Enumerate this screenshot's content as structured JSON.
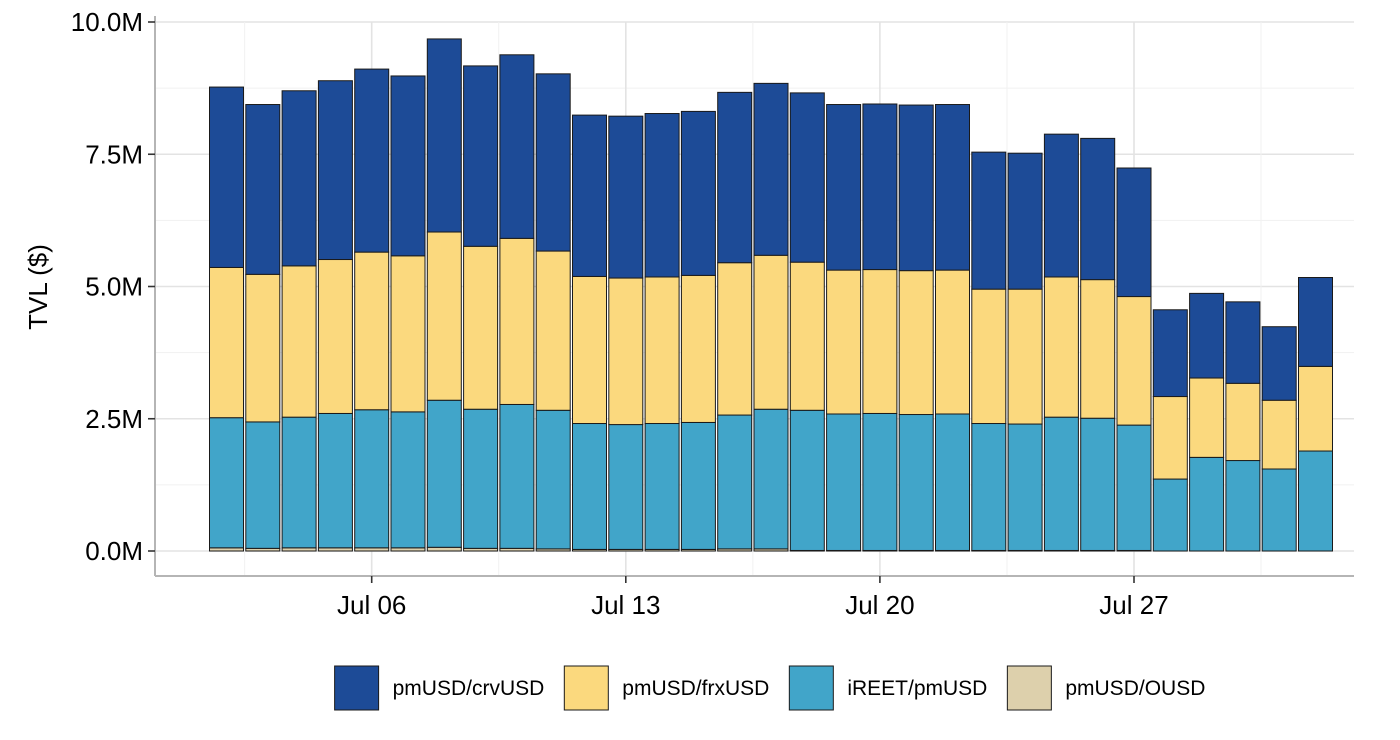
{
  "chart_data": {
    "type": "bar",
    "stacked": true,
    "title": "",
    "xlabel": "",
    "ylabel": "TVL ($)",
    "ylim": [
      0,
      10000000
    ],
    "y_ticks": [
      {
        "value": 0,
        "label": "0.0M"
      },
      {
        "value": 2500000,
        "label": "2.5M"
      },
      {
        "value": 5000000,
        "label": "5.0M"
      },
      {
        "value": 7500000,
        "label": "7.5M"
      },
      {
        "value": 10000000,
        "label": "10.0M"
      }
    ],
    "x_ticks": [
      {
        "date": "2024-07-06",
        "label": "Jul 06"
      },
      {
        "date": "2024-07-13",
        "label": "Jul 13"
      },
      {
        "date": "2024-07-20",
        "label": "Jul 20"
      },
      {
        "date": "2024-07-27",
        "label": "Jul 27"
      }
    ],
    "grid": true,
    "legend_position": "bottom",
    "categories": [
      "2024-07-02",
      "2024-07-03",
      "2024-07-04",
      "2024-07-05",
      "2024-07-06",
      "2024-07-07",
      "2024-07-08",
      "2024-07-09",
      "2024-07-10",
      "2024-07-11",
      "2024-07-12",
      "2024-07-13",
      "2024-07-14",
      "2024-07-15",
      "2024-07-16",
      "2024-07-17",
      "2024-07-18",
      "2024-07-19",
      "2024-07-20",
      "2024-07-21",
      "2024-07-22",
      "2024-07-23",
      "2024-07-24",
      "2024-07-25",
      "2024-07-26",
      "2024-07-27",
      "2024-07-28",
      "2024-07-29",
      "2024-07-30",
      "2024-07-31",
      "2024-08-01"
    ],
    "series": [
      {
        "name": "pmUSD/OUSD",
        "color": "#DDD0AC",
        "values": [
          60000,
          50000,
          60000,
          60000,
          60000,
          60000,
          70000,
          50000,
          50000,
          40000,
          30000,
          30000,
          30000,
          30000,
          40000,
          40000,
          10000,
          10000,
          10000,
          10000,
          10000,
          10000,
          10000,
          10000,
          10000,
          10000,
          0,
          0,
          0,
          0,
          0
        ]
      },
      {
        "name": "iREET/pmUSD",
        "color": "#41A5C9",
        "values": [
          2460000,
          2390000,
          2470000,
          2540000,
          2610000,
          2570000,
          2780000,
          2630000,
          2720000,
          2620000,
          2380000,
          2360000,
          2380000,
          2400000,
          2530000,
          2640000,
          2650000,
          2580000,
          2590000,
          2570000,
          2580000,
          2400000,
          2390000,
          2520000,
          2500000,
          2370000,
          1360000,
          1770000,
          1710000,
          1550000,
          1890000
        ]
      },
      {
        "name": "pmUSD/frxUSD",
        "color": "#FBD97E",
        "values": [
          2840000,
          2790000,
          2860000,
          2910000,
          2980000,
          2950000,
          3180000,
          3080000,
          3140000,
          3010000,
          2780000,
          2770000,
          2770000,
          2780000,
          2880000,
          2910000,
          2800000,
          2720000,
          2720000,
          2720000,
          2720000,
          2540000,
          2550000,
          2650000,
          2620000,
          2430000,
          1560000,
          1500000,
          1460000,
          1300000,
          1600000
        ]
      },
      {
        "name": "pmUSD/crvUSD",
        "color": "#1D4B97",
        "values": [
          3410000,
          3210000,
          3310000,
          3380000,
          3460000,
          3400000,
          3650000,
          3410000,
          3470000,
          3350000,
          3050000,
          3060000,
          3090000,
          3100000,
          3220000,
          3250000,
          3200000,
          3130000,
          3130000,
          3130000,
          3130000,
          2590000,
          2570000,
          2700000,
          2670000,
          2430000,
          1640000,
          1600000,
          1540000,
          1390000,
          1680000
        ]
      }
    ],
    "legend_order": [
      "pmUSD/crvUSD",
      "pmUSD/frxUSD",
      "iREET/pmUSD",
      "pmUSD/OUSD"
    ]
  }
}
